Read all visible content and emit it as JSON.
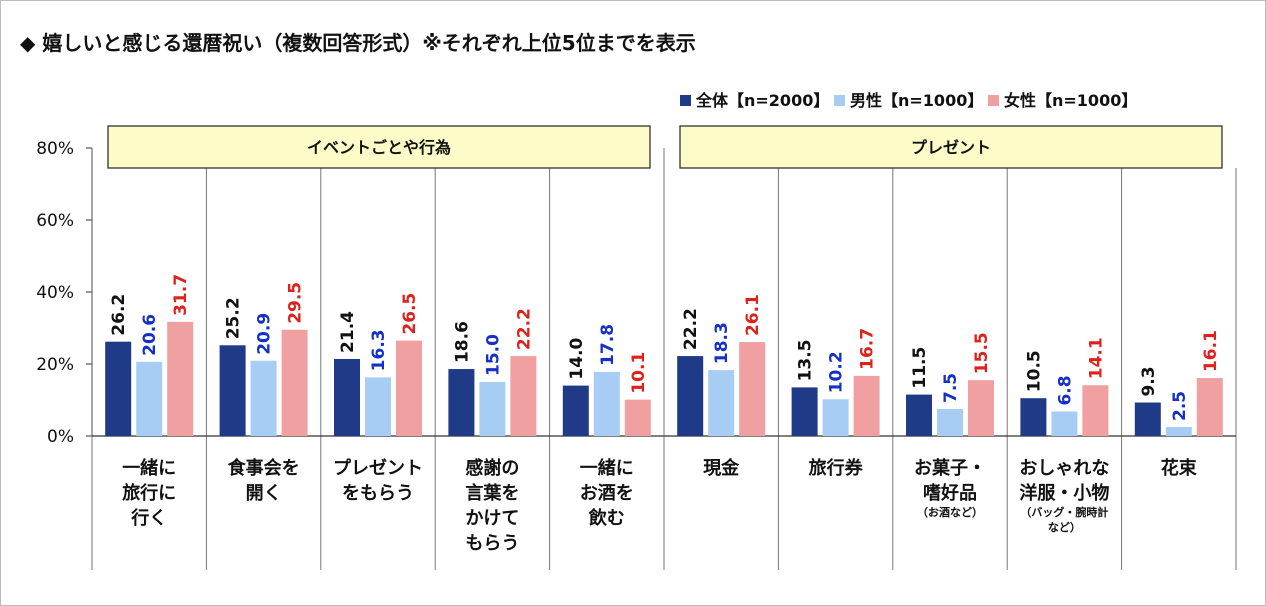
{
  "title": "◆ 嬉しいと感じる還暦祝い（複数回答形式）※それぞれ上位5位までを表示",
  "chart_data": {
    "type": "bar",
    "ylim": [
      0,
      80
    ],
    "yticks": [
      "0%",
      "20%",
      "40%",
      "60%",
      "80%"
    ],
    "grid": false,
    "legend_position": "top-right",
    "groups": [
      {
        "label": "イベントごとや行為",
        "categories": [
          0,
          1,
          2,
          3,
          4
        ]
      },
      {
        "label": "プレゼント",
        "categories": [
          5,
          6,
          7,
          8,
          9
        ]
      }
    ],
    "categories": [
      {
        "lines": [
          "一緒に",
          "旅行に",
          "行く"
        ],
        "note": []
      },
      {
        "lines": [
          "食事会を",
          "開く"
        ],
        "note": []
      },
      {
        "lines": [
          "プレゼント",
          "をもらう"
        ],
        "note": []
      },
      {
        "lines": [
          "感謝の",
          "言葉を",
          "かけて",
          "もらう"
        ],
        "note": []
      },
      {
        "lines": [
          "一緒に",
          "お酒を",
          "飲む"
        ],
        "note": []
      },
      {
        "lines": [
          "現金"
        ],
        "note": []
      },
      {
        "lines": [
          "旅行券"
        ],
        "note": []
      },
      {
        "lines": [
          "お菓子・",
          "嗜好品"
        ],
        "note": [
          "（お酒など）"
        ]
      },
      {
        "lines": [
          "おしゃれな",
          "洋服・小物"
        ],
        "note": [
          "（バッグ・腕時計",
          "など）"
        ]
      },
      {
        "lines": [
          "花束"
        ],
        "note": []
      }
    ],
    "series": [
      {
        "name": "全体【n=2000】",
        "color": "#1f3a87",
        "label_color": "#111111",
        "values": [
          26.2,
          25.2,
          21.4,
          18.6,
          14.0,
          22.2,
          13.5,
          11.5,
          10.5,
          9.3
        ],
        "labels": [
          "26.2",
          "25.2",
          "21.4",
          "18.6",
          "14.0",
          "22.2",
          "13.5",
          "11.5",
          "10.5",
          "9.3"
        ]
      },
      {
        "name": "男性【n=1000】",
        "color": "#a7cdf4",
        "label_color": "#1530c8",
        "values": [
          20.6,
          20.9,
          16.3,
          15.0,
          17.8,
          18.3,
          10.2,
          7.5,
          6.8,
          2.5
        ],
        "labels": [
          "20.6",
          "20.9",
          "16.3",
          "15.0",
          "17.8",
          "18.3",
          "10.2",
          "7.5",
          "6.8",
          "2.5"
        ]
      },
      {
        "name": "女性【n=1000】",
        "color": "#f0a0a0",
        "label_color": "#e0201a",
        "values": [
          31.7,
          29.5,
          26.5,
          22.2,
          10.1,
          26.1,
          16.7,
          15.5,
          14.1,
          16.1
        ],
        "labels": [
          "31.7",
          "29.5",
          "26.5",
          "22.2",
          "10.1",
          "26.1",
          "16.7",
          "15.5",
          "14.1",
          "16.1"
        ]
      }
    ]
  }
}
